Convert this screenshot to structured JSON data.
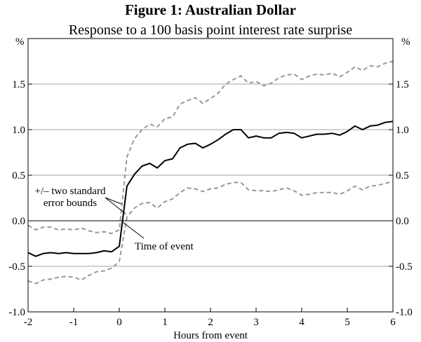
{
  "chart_data": {
    "type": "line",
    "title": "Figure 1: Australian Dollar",
    "subtitle": "Response to a 100 basis point interest rate surprise",
    "xlabel": "Hours from event",
    "ylabel_left": "%",
    "ylabel_right": "%",
    "xlim": [
      -2,
      6
    ],
    "ylim": [
      -1.0,
      2.0
    ],
    "x_ticks": [
      -2,
      -1,
      0,
      1,
      2,
      3,
      4,
      5,
      6
    ],
    "x_tick_labels": [
      "-2",
      "-1",
      "0",
      "1",
      "2",
      "3",
      "4",
      "5",
      "6"
    ],
    "y_ticks": [
      -1.0,
      -0.5,
      0.0,
      0.5,
      1.0,
      1.5
    ],
    "y_tick_labels": [
      "-1.0",
      "-0.5",
      "0.0",
      "0.5",
      "1.0",
      "1.5"
    ],
    "gridlines": [
      -0.5,
      0.5,
      1.0,
      1.5
    ],
    "zero_line": 0.0,
    "annotations": [
      {
        "text_lines": [
          "+/– two standard",
          "error bounds"
        ],
        "points_to": [
          [
            0.03,
            0.23
          ],
          [
            0.12,
            0.06
          ]
        ]
      },
      {
        "text_lines": [
          "Time of event"
        ],
        "points_to": [
          [
            0.0,
            0.0
          ]
        ]
      }
    ],
    "series": [
      {
        "role": "estimate",
        "color": "#000000",
        "style": "solid",
        "x": [
          -2.0,
          -1.833,
          -1.667,
          -1.5,
          -1.333,
          -1.167,
          -1.0,
          -0.833,
          -0.667,
          -0.5,
          -0.333,
          -0.167,
          0.0,
          0.167,
          0.333,
          0.5,
          0.667,
          0.833,
          1.0,
          1.167,
          1.333,
          1.5,
          1.667,
          1.833,
          2.0,
          2.167,
          2.333,
          2.5,
          2.667,
          2.833,
          3.0,
          3.167,
          3.333,
          3.5,
          3.667,
          3.833,
          4.0,
          4.167,
          4.333,
          4.5,
          4.667,
          4.833,
          5.0,
          5.167,
          5.333,
          5.5,
          5.667,
          5.833,
          6.0
        ],
        "y": [
          -0.35,
          -0.39,
          -0.36,
          -0.35,
          -0.36,
          -0.35,
          -0.36,
          -0.36,
          -0.36,
          -0.35,
          -0.33,
          -0.34,
          -0.28,
          0.38,
          0.51,
          0.6,
          0.63,
          0.58,
          0.66,
          0.68,
          0.8,
          0.84,
          0.85,
          0.8,
          0.84,
          0.89,
          0.95,
          1.0,
          1.0,
          0.91,
          0.93,
          0.91,
          0.91,
          0.96,
          0.97,
          0.96,
          0.91,
          0.93,
          0.95,
          0.95,
          0.96,
          0.94,
          0.98,
          1.04,
          1.0,
          1.04,
          1.05,
          1.08,
          1.09
        ]
      },
      {
        "role": "upper-bound",
        "color": "#999999",
        "style": "dashed",
        "x": [
          -2.0,
          -1.833,
          -1.667,
          -1.5,
          -1.333,
          -1.167,
          -1.0,
          -0.833,
          -0.667,
          -0.5,
          -0.333,
          -0.167,
          0.0,
          0.167,
          0.333,
          0.5,
          0.667,
          0.833,
          1.0,
          1.167,
          1.333,
          1.5,
          1.667,
          1.833,
          2.0,
          2.167,
          2.333,
          2.5,
          2.667,
          2.833,
          3.0,
          3.167,
          3.333,
          3.5,
          3.667,
          3.833,
          4.0,
          4.167,
          4.333,
          4.5,
          4.667,
          4.833,
          5.0,
          5.167,
          5.333,
          5.5,
          5.667,
          5.833,
          6.0
        ],
        "y": [
          -0.05,
          -0.1,
          -0.07,
          -0.07,
          -0.1,
          -0.09,
          -0.1,
          -0.08,
          -0.11,
          -0.13,
          -0.12,
          -0.14,
          -0.1,
          0.7,
          0.9,
          1.0,
          1.06,
          1.03,
          1.12,
          1.14,
          1.28,
          1.32,
          1.35,
          1.29,
          1.34,
          1.4,
          1.5,
          1.55,
          1.59,
          1.51,
          1.53,
          1.48,
          1.51,
          1.57,
          1.6,
          1.61,
          1.55,
          1.59,
          1.61,
          1.6,
          1.62,
          1.58,
          1.63,
          1.69,
          1.65,
          1.7,
          1.69,
          1.73,
          1.75
        ]
      },
      {
        "role": "lower-bound",
        "color": "#999999",
        "style": "dashed",
        "x": [
          -2.0,
          -1.833,
          -1.667,
          -1.5,
          -1.333,
          -1.167,
          -1.0,
          -0.833,
          -0.667,
          -0.5,
          -0.333,
          -0.167,
          0.0,
          0.167,
          0.333,
          0.5,
          0.667,
          0.833,
          1.0,
          1.167,
          1.333,
          1.5,
          1.667,
          1.833,
          2.0,
          2.167,
          2.333,
          2.5,
          2.667,
          2.833,
          3.0,
          3.167,
          3.333,
          3.5,
          3.667,
          3.833,
          4.0,
          4.167,
          4.333,
          4.5,
          4.667,
          4.833,
          5.0,
          5.167,
          5.333,
          5.5,
          5.667,
          5.833,
          6.0
        ],
        "y": [
          -0.66,
          -0.69,
          -0.65,
          -0.64,
          -0.62,
          -0.61,
          -0.62,
          -0.65,
          -0.6,
          -0.56,
          -0.55,
          -0.52,
          -0.45,
          0.04,
          0.14,
          0.19,
          0.2,
          0.14,
          0.21,
          0.24,
          0.31,
          0.36,
          0.35,
          0.32,
          0.35,
          0.36,
          0.4,
          0.42,
          0.42,
          0.34,
          0.33,
          0.33,
          0.32,
          0.34,
          0.36,
          0.33,
          0.28,
          0.29,
          0.31,
          0.31,
          0.31,
          0.29,
          0.33,
          0.38,
          0.34,
          0.38,
          0.39,
          0.41,
          0.43
        ]
      }
    ]
  }
}
